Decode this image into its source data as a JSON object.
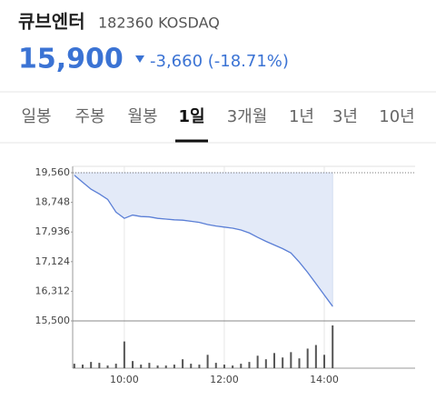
{
  "header": {
    "name": "큐브엔터",
    "code": "182360 KOSDAQ",
    "price": "15,900",
    "change": "-3,660 (-18.71%)"
  },
  "tabs": {
    "items": [
      "일봉",
      "주봉",
      "월봉",
      "1일",
      "3개월",
      "1년",
      "3년",
      "10년"
    ],
    "active": 3
  },
  "chart_data": {
    "type": "line",
    "x": [
      540,
      550,
      560,
      570,
      580,
      590,
      600,
      610,
      620,
      630,
      640,
      650,
      660,
      670,
      680,
      690,
      700,
      710,
      720,
      730,
      740,
      750,
      760,
      770,
      780,
      790,
      800,
      810,
      820,
      830,
      840,
      850
    ],
    "xlim": [
      538,
      949
    ],
    "xticks": [
      {
        "value": 600,
        "label": "10:00"
      },
      {
        "value": 720,
        "label": "12:00"
      },
      {
        "value": 840,
        "label": "14:00"
      }
    ],
    "ylim": [
      15500,
      19560
    ],
    "yticks": [
      {
        "value": 19560,
        "label": "19,560"
      },
      {
        "value": 18748,
        "label": "18,748"
      },
      {
        "value": 17936,
        "label": "17,936"
      },
      {
        "value": 17124,
        "label": "17,124"
      },
      {
        "value": 16312,
        "label": "16,312"
      },
      {
        "value": 15500,
        "label": "15,500"
      }
    ],
    "y2lim": [
      0,
      100
    ],
    "series": [
      {
        "color": "#5b7fd6",
        "values": [
          19490,
          19300,
          19110,
          18980,
          18830,
          18480,
          18310,
          18400,
          18360,
          18350,
          18310,
          18290,
          18270,
          18260,
          18230,
          18200,
          18140,
          18100,
          18070,
          18040,
          17990,
          17910,
          17790,
          17680,
          17580,
          17480,
          17360,
          17110,
          16830,
          16520,
          16210,
          15900
        ]
      },
      {
        "color": "#555555",
        "axis": "y2",
        "values": [
          10,
          8,
          14,
          12,
          6,
          10,
          60,
          16,
          8,
          12,
          6,
          6,
          8,
          20,
          10,
          8,
          30,
          12,
          8,
          6,
          10,
          14,
          28,
          20,
          34,
          24,
          36,
          22,
          44,
          52,
          30,
          96
        ]
      }
    ]
  }
}
